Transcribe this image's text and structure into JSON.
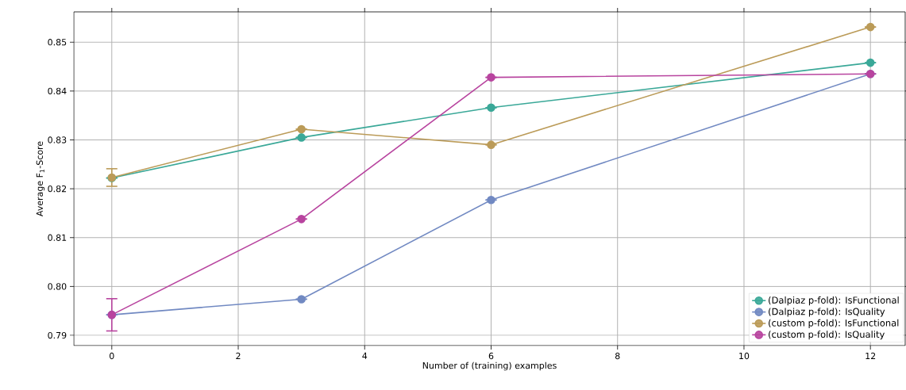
{
  "chart_data": {
    "type": "line",
    "xlabel": "Number of (training) examples",
    "ylabel": "Average F$_{1}$-Score",
    "x": [
      0,
      3,
      6,
      12
    ],
    "xlim": [
      -0.6,
      12.55
    ],
    "ylim": [
      0.7879,
      0.8562
    ],
    "xticks": [
      0,
      2,
      4,
      6,
      8,
      10,
      12
    ],
    "yticks": [
      {
        "value": 0.79,
        "label": "0.79"
      },
      {
        "value": 0.8,
        "label": "0.80"
      },
      {
        "value": 0.81,
        "label": "0.81"
      },
      {
        "value": 0.82,
        "label": "0.82"
      },
      {
        "value": 0.83,
        "label": "0.83"
      },
      {
        "value": 0.84,
        "label": "0.84"
      },
      {
        "value": 0.85,
        "label": "0.85"
      }
    ],
    "grid": true,
    "legend": "bottom right",
    "marker": "circle",
    "line_style": "solid",
    "series": [
      {
        "name": "(Dalpiaz p-fold): IsFunctional",
        "color": "#3aa898",
        "values": [
          0.8222,
          0.8305,
          0.8366,
          0.8458
        ],
        "errors": [
          null,
          0,
          0,
          0
        ]
      },
      {
        "name": "(Dalpiaz p-fold): IsQuality",
        "color": "#7189c2",
        "values": [
          0.7942,
          0.7974,
          0.8177,
          0.8435
        ],
        "errors": [
          null,
          0,
          0,
          0
        ]
      },
      {
        "name": "(custom p-fold): IsFunctional",
        "color": "#bb9b58",
        "values": [
          0.8223,
          0.8322,
          0.829,
          0.8531
        ],
        "errors": [
          0.0018,
          0,
          0,
          0
        ]
      },
      {
        "name": "(custom p-fold): IsQuality",
        "color": "#b8449f",
        "values": [
          0.7942,
          0.8138,
          0.8428,
          0.8435
        ],
        "errors": [
          0.0033,
          0,
          0,
          0
        ]
      }
    ]
  }
}
